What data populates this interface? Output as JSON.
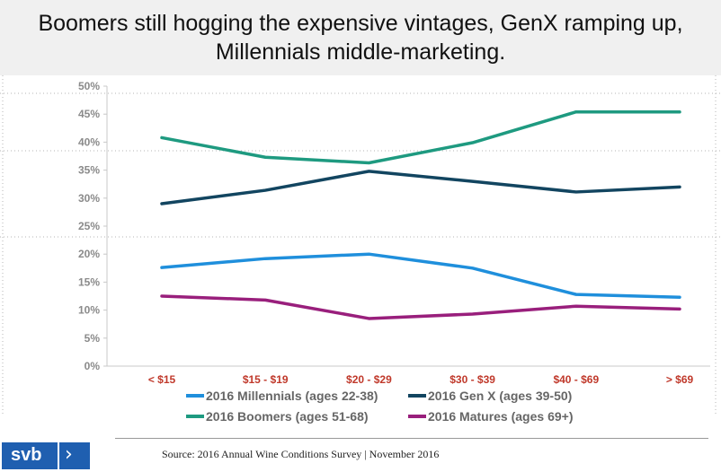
{
  "headline": "Boomers still hogging the expensive vintages, GenX ramping up, Millennials middle-marketing.",
  "source": "Source: 2016 Annual Wine Conditions Survey | November 2016",
  "logo": {
    "text": "svb",
    "icon": "chevron-right-icon"
  },
  "chart_data": {
    "type": "line",
    "categories": [
      "< $15",
      "$15 - $19",
      "$20 - $29",
      "$30 - $39",
      "$40 - $69",
      "> $69"
    ],
    "ylim": [
      0,
      50
    ],
    "yticks": [
      "0%",
      "5%",
      "10%",
      "15%",
      "20%",
      "25%",
      "30%",
      "35%",
      "40%",
      "45%",
      "50%"
    ],
    "grid": false,
    "legend": "bottom",
    "series": [
      {
        "name": "2016 Millennials (ages 22-38)",
        "color": "#1f8fdc",
        "values": [
          17.6,
          19.2,
          20.0,
          17.5,
          12.8,
          12.3
        ]
      },
      {
        "name": "2016 Gen X (ages 39-50)",
        "color": "#124560",
        "values": [
          29.0,
          31.4,
          34.8,
          33.0,
          31.1,
          32.0
        ]
      },
      {
        "name": "2016 Boomers (ages 51-68)",
        "color": "#1e9a80",
        "values": [
          40.8,
          37.3,
          36.3,
          39.9,
          45.4,
          45.4
        ]
      },
      {
        "name": "2016 Matures (ages 69+)",
        "color": "#991f7c",
        "values": [
          12.5,
          11.8,
          8.5,
          9.3,
          10.7,
          10.2
        ]
      }
    ]
  }
}
